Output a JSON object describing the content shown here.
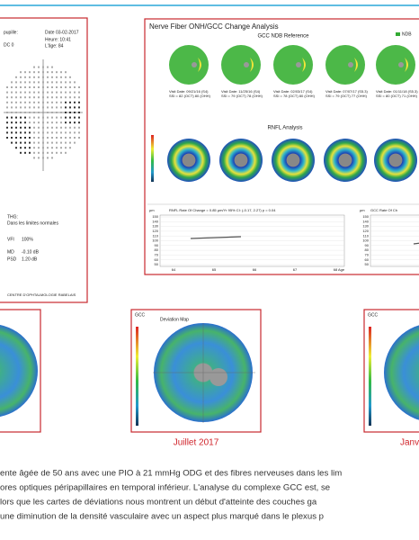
{
  "visual_field": {
    "header": [
      "pupille:",
      "Date 03-02-2017",
      "Heure: 10:41",
      "DC 0",
      "L'âge: 84"
    ],
    "ght_label": "THG:",
    "ght_result": "Dans les limites normales",
    "indices": [
      [
        "VFI",
        "100%"
      ],
      [
        "MD",
        "-0.10 dB"
      ],
      [
        "PSD",
        "1.20 dB"
      ]
    ],
    "footer": "CENTRE D'OPHTALMOLOGIE RABELAIS"
  },
  "change_analysis": {
    "title": "Nerve Fiber ONH/GCC Change Analysis",
    "gcc_title": "GCC NDB Reference",
    "ndb": "NDB",
    "visits": [
      [
        "Visit Date: 09/21/16 (S4)",
        "SSI = 82 (OCT) 80 (OHH)"
      ],
      [
        "Visit Date: 11/25/16 (S4)",
        "SSI = 79 (OCT) 78 (OHH)"
      ],
      [
        "Visit Date: 02/03/17 (S4)",
        "SSI = 78 (OCT) 80 (OHH)"
      ],
      [
        "Visit Date: 07/07/17 (S5.3)",
        "SSI = 79 (OCT) 77 (OHH)"
      ],
      [
        "Visit Date: 01/11/18 (S5.3)",
        "SSI = 80 (OCT) 71 (OHH)"
      ]
    ],
    "rnfl_title": "RNFL Analysis",
    "graph_label": "µm",
    "rnfl_rate": "RNFL Rate Of Change = 0.85 µm/Yr   95% CI: (-0.17, 2.27)   p = 0.04",
    "gcc_label": "µm",
    "gcc_rate": "GCC Rate Of Ch",
    "y_labels": [
      "150",
      "140",
      "130",
      "120",
      "110",
      "100",
      "90",
      "80",
      "70",
      "60",
      "50"
    ],
    "x_labels": [
      "64",
      "65",
      "66",
      "67",
      "68"
    ],
    "x_axis": "Age"
  },
  "figures": [
    {
      "label": "GCC",
      "title": "Deviation Map",
      "caption": "Juillet 2017"
    },
    {
      "label": "GCC",
      "caption": "Janv"
    }
  ],
  "paragraph": [
    "ente âgée de 50 ans avec une PIO à 21 mmHg ODG et des fibres nerveuses dans les lim",
    "ores optiques péripapillaires en temporal inférieur. L'analyse du complexe GCC est, se",
    "lors que les cartes de déviations nous montrent un début d'atteinte des couches ga",
    "une diminution de la densité vasculaire avec un aspect plus marqué dans le plexus p"
  ]
}
